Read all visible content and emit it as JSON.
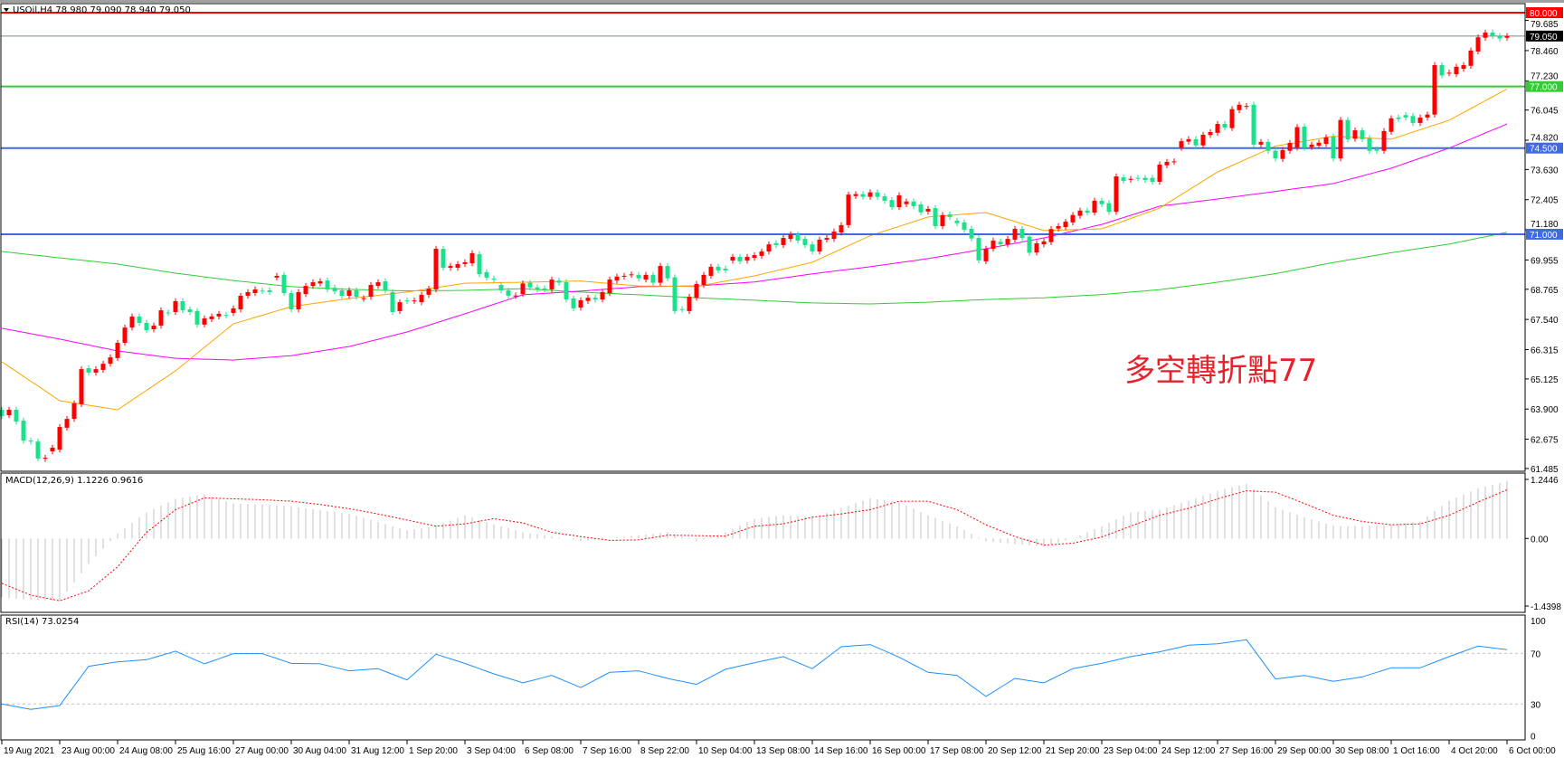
{
  "header": {
    "symbol_line": "USOil,H4  78.980 79.090 78.940 79.050",
    "annotation": "多空轉折點77"
  },
  "colors": {
    "bull_candle": "#ff0000",
    "bear_candle": "#1ee08c",
    "ma_fast": "#ffa500",
    "ma_mid": "#ff00ff",
    "ma_slow": "#32cd32",
    "level_red": "#ff0000",
    "level_green": "#32cd32",
    "level_blue": "#4169e1",
    "price_line": "#778899",
    "rsi_line": "#1e90ff",
    "macd_hist": "#c0c0c0",
    "macd_signal": "#ff0000",
    "annotation": "#e8202a"
  },
  "chart_data": [
    {
      "type": "candlestick",
      "title": "USOil,H4",
      "ohlc_last": {
        "open": 78.98,
        "high": 79.09,
        "low": 78.94,
        "close": 79.05
      },
      "ylim": [
        61.485,
        80.0
      ],
      "y_ticks": [
        "79.685",
        "78.460",
        "77.230",
        "76.045",
        "74.820",
        "73.630",
        "72.405",
        "71.180",
        "69.955",
        "68.765",
        "67.540",
        "66.315",
        "65.125",
        "63.900",
        "62.675",
        "61.485"
      ],
      "levels": [
        {
          "value": 80.0,
          "label": "80.000",
          "color": "level_red"
        },
        {
          "value": 79.05,
          "label": "79.050",
          "color": "price_line"
        },
        {
          "value": 77.0,
          "label": "77.000",
          "color": "level_green"
        },
        {
          "value": 74.5,
          "label": "74.500",
          "color": "level_blue"
        },
        {
          "value": 71.0,
          "label": "71.000",
          "color": "level_blue"
        }
      ],
      "x_labels": [
        "19 Aug 2021",
        "23 Aug 00:00",
        "24 Aug 08:00",
        "25 Aug 16:00",
        "27 Aug 00:00",
        "30 Aug 04:00",
        "31 Aug 12:00",
        "1 Sep 20:00",
        "3 Sep 04:00",
        "6 Sep 08:00",
        "7 Sep 16:00",
        "8 Sep 22:00",
        "10 Sep 04:00",
        "13 Sep 08:00",
        "14 Sep 16:00",
        "16 Sep 00:00",
        "17 Sep 08:00",
        "20 Sep 12:00",
        "21 Sep 20:00",
        "23 Sep 04:00",
        "24 Sep 12:00",
        "27 Sep 16:00",
        "29 Sep 00:00",
        "30 Sep 08:00",
        "1 Oct 16:00",
        "4 Oct 20:00",
        "6 Oct 00:00"
      ],
      "bars_per_label": 8,
      "open": [
        63.87,
        63.65,
        63.87,
        63.43,
        62.62,
        62.58,
        61.88,
        62.18,
        62.25,
        63.14,
        63.5,
        64.1,
        65.56,
        65.38,
        65.49,
        65.74,
        65.97,
        66.59,
        67.21,
        67.66,
        67.4,
        67.14,
        67.29,
        67.82,
        67.84,
        68.28,
        67.95,
        67.88,
        67.33,
        67.55,
        67.66,
        67.72,
        67.8,
        67.95,
        68.5,
        68.61,
        68.71,
        68.72,
        69.24,
        69.35,
        68.61,
        67.95,
        68.57,
        68.9,
        69.0,
        69.12,
        68.83,
        68.72,
        68.5,
        68.72,
        68.38,
        68.46,
        68.9,
        69.09,
        68.65,
        67.88,
        68.31,
        68.29,
        68.24,
        68.54,
        68.76,
        70.41,
        69.64,
        69.64,
        69.79,
        69.82,
        70.19,
        69.46,
        69.2,
        68.94,
        68.72,
        68.49,
        68.57,
        69.03,
        68.84,
        68.8,
        68.76,
        69.12,
        69.05,
        68.39,
        68.02,
        68.29,
        68.42,
        68.35,
        68.61,
        69.12,
        69.28,
        69.35,
        69.35,
        69.16,
        69.35,
        69.03,
        69.71,
        69.25,
        67.96,
        67.88,
        68.42,
        68.94,
        69.31,
        69.68,
        69.6,
        69.93,
        70.08,
        69.93,
        70.04,
        70.12,
        70.3,
        70.64,
        70.56,
        70.81,
        71.0,
        70.81,
        70.59,
        70.3,
        70.78,
        70.81,
        71.07,
        71.37,
        72.55,
        72.63,
        72.52,
        72.7,
        72.54,
        72.39,
        72.1,
        72.22,
        72.33,
        72.21,
        71.92,
        72.06,
        71.33,
        71.81,
        71.55,
        71.48,
        71.22,
        70.85,
        69.9,
        70.41,
        70.7,
        70.59,
        70.78,
        71.22,
        70.9,
        70.26,
        70.59,
        70.68,
        71.23,
        71.29,
        71.48,
        71.75,
        71.96,
        71.88,
        72.36,
        72.26,
        71.91,
        73.31,
        73.21,
        73.29,
        73.29,
        73.29,
        73.13,
        73.8,
        73.94,
        74.51,
        74.76,
        74.86,
        74.61,
        75.03,
        75.12,
        75.48,
        75.31,
        76.04,
        76.19,
        76.26,
        74.64,
        74.75,
        74.39,
        74.06,
        74.39,
        74.52,
        75.37,
        74.54,
        74.6,
        74.67,
        74.97,
        74.08,
        75.64,
        74.88,
        75.22,
        74.9,
        74.45,
        74.39,
        75.16,
        75.74,
        75.84,
        75.8,
        75.52,
        75.74,
        75.86,
        77.87,
        77.54,
        77.5,
        77.72,
        77.84,
        78.42,
        78.98,
        79.19,
        79.05,
        78.98
      ],
      "close": [
        63.61,
        63.87,
        63.39,
        62.62,
        62.58,
        61.89,
        61.92,
        62.33,
        63.17,
        63.5,
        64.13,
        65.52,
        65.38,
        65.52,
        65.74,
        66.0,
        66.59,
        67.21,
        67.66,
        67.4,
        67.1,
        67.29,
        67.91,
        67.8,
        68.28,
        67.91,
        67.84,
        67.33,
        67.58,
        67.66,
        67.77,
        67.7,
        67.99,
        68.5,
        68.65,
        68.76,
        68.69,
        68.65,
        69.31,
        68.61,
        67.95,
        68.65,
        68.9,
        69.05,
        69.09,
        68.76,
        68.68,
        68.5,
        68.72,
        68.46,
        68.4,
        68.94,
        69.05,
        68.72,
        67.84,
        68.24,
        68.29,
        68.31,
        68.54,
        68.79,
        70.41,
        69.64,
        69.71,
        69.79,
        69.86,
        70.23,
        69.38,
        69.24,
        69.16,
        68.72,
        68.5,
        68.51,
        69.0,
        68.84,
        68.76,
        68.76,
        69.16,
        69.03,
        68.35,
        67.99,
        68.32,
        68.42,
        68.35,
        68.65,
        69.16,
        69.28,
        69.31,
        69.37,
        69.21,
        69.35,
        69.03,
        69.71,
        69.21,
        67.88,
        67.94,
        68.46,
        68.98,
        69.35,
        69.68,
        69.53,
        69.53,
        70.08,
        69.9,
        70.08,
        70.15,
        70.3,
        70.59,
        70.56,
        70.85,
        71.0,
        70.74,
        70.56,
        70.3,
        70.78,
        70.85,
        71.11,
        71.37,
        72.61,
        72.63,
        72.52,
        72.7,
        72.52,
        72.36,
        72.1,
        72.58,
        72.33,
        72.14,
        71.89,
        72.03,
        71.33,
        71.78,
        71.7,
        71.45,
        71.18,
        70.83,
        69.94,
        70.41,
        70.74,
        70.59,
        70.81,
        71.22,
        70.85,
        70.25,
        70.63,
        70.71,
        71.21,
        71.33,
        71.51,
        71.78,
        71.96,
        71.88,
        72.36,
        72.22,
        71.91,
        73.35,
        73.17,
        73.25,
        73.27,
        73.2,
        73.13,
        73.83,
        73.94,
        73.96,
        74.78,
        74.86,
        74.61,
        75.04,
        75.15,
        75.48,
        75.33,
        76.08,
        76.26,
        76.21,
        74.64,
        74.75,
        74.39,
        74.08,
        74.42,
        74.71,
        75.35,
        74.51,
        74.64,
        74.72,
        74.94,
        74.08,
        75.64,
        74.85,
        75.22,
        74.86,
        74.39,
        74.39,
        75.19,
        75.71,
        75.68,
        75.74,
        75.52,
        75.74,
        75.86,
        77.87,
        77.45,
        77.56,
        77.8,
        77.87,
        78.46,
        79.0,
        79.19,
        79.05,
        78.95,
        79.05
      ],
      "ma_sample_every_bars": 8,
      "ma_fast": [
        65.82,
        64.24,
        63.87,
        65.45,
        67.36,
        68.06,
        68.39,
        68.65,
        69.01,
        69.05,
        69.1,
        68.9,
        68.88,
        69.31,
        69.86,
        70.94,
        71.7,
        71.88,
        71.15,
        71.22,
        72.06,
        73.53,
        74.58,
        74.98,
        74.86,
        75.63,
        76.9
      ],
      "ma_mid": [
        67.18,
        66.74,
        66.26,
        65.96,
        65.89,
        66.07,
        66.44,
        67.03,
        67.77,
        68.54,
        68.69,
        68.87,
        68.9,
        69.06,
        69.39,
        69.68,
        70.01,
        70.41,
        70.85,
        71.4,
        72.14,
        72.43,
        72.74,
        73.06,
        73.68,
        74.5,
        75.48
      ],
      "ma_slow": [
        70.3,
        70.04,
        69.79,
        69.42,
        69.12,
        68.87,
        68.76,
        68.7,
        68.72,
        68.79,
        68.65,
        68.54,
        68.42,
        68.32,
        68.21,
        68.17,
        68.24,
        68.35,
        68.42,
        68.55,
        68.75,
        69.05,
        69.4,
        69.85,
        70.25,
        70.6,
        71.08
      ]
    },
    {
      "type": "bar",
      "title": "MACD(12,26,9) 1.1226 0.9616",
      "ylim": [
        -1.4398,
        1.2446
      ],
      "y_ticks": [
        "1.2446",
        "0.00",
        "-1.4398"
      ],
      "sample_every_bars": 4,
      "histogram": [
        -1.25,
        -1.3,
        -1.32,
        -0.54,
        0.11,
        0.55,
        0.84,
        0.93,
        0.74,
        0.72,
        0.68,
        0.6,
        0.52,
        0.35,
        0.17,
        0.27,
        0.49,
        0.3,
        0.13,
        0.05,
        -0.06,
        0.0,
        0.07,
        0.13,
        -0.06,
        0.13,
        0.42,
        0.49,
        0.45,
        0.64,
        0.85,
        0.77,
        0.49,
        0.26,
        -0.06,
        -0.12,
        -0.17,
        0.0,
        0.26,
        0.55,
        0.61,
        0.8,
        1.01,
        1.16,
        0.66,
        0.45,
        0.27,
        0.26,
        0.29,
        0.36,
        0.8,
        1.06,
        1.22
      ],
      "signal": [
        -0.95,
        -1.2,
        -1.32,
        -1.11,
        -0.6,
        0.13,
        0.61,
        0.86,
        0.84,
        0.82,
        0.79,
        0.72,
        0.63,
        0.52,
        0.39,
        0.26,
        0.31,
        0.42,
        0.33,
        0.13,
        0.04,
        -0.04,
        -0.03,
        0.07,
        0.06,
        0.05,
        0.26,
        0.31,
        0.45,
        0.52,
        0.61,
        0.79,
        0.79,
        0.61,
        0.29,
        0.04,
        -0.14,
        -0.1,
        0.03,
        0.26,
        0.49,
        0.64,
        0.84,
        1.01,
        0.98,
        0.74,
        0.49,
        0.36,
        0.29,
        0.31,
        0.49,
        0.77,
        1.03
      ]
    },
    {
      "type": "line",
      "title": "RSI(14) 73.0254",
      "ylim": [
        0,
        100
      ],
      "y_ticks": [
        "100",
        "70",
        "30",
        "0"
      ],
      "levels": [
        70,
        30
      ],
      "sample_every_bars": 4,
      "values": [
        30,
        25.7,
        28.8,
        59.8,
        63.3,
        65,
        71.7,
        61.7,
        69.8,
        69.8,
        62.1,
        61.7,
        56.2,
        57.9,
        49,
        69.3,
        62,
        53.8,
        46.7,
        52.6,
        43,
        55,
        56.2,
        50.2,
        45.5,
        57.4,
        62.6,
        67.4,
        57.9,
        75.2,
        76.9,
        66.9,
        55,
        52.6,
        36,
        50.2,
        46.7,
        57.9,
        62.1,
        67.4,
        71.2,
        76.4,
        77.6,
        80.7,
        49.8,
        52.6,
        47.9,
        51.4,
        58.6,
        58.6,
        67.4,
        75.7,
        72.9
      ]
    }
  ]
}
